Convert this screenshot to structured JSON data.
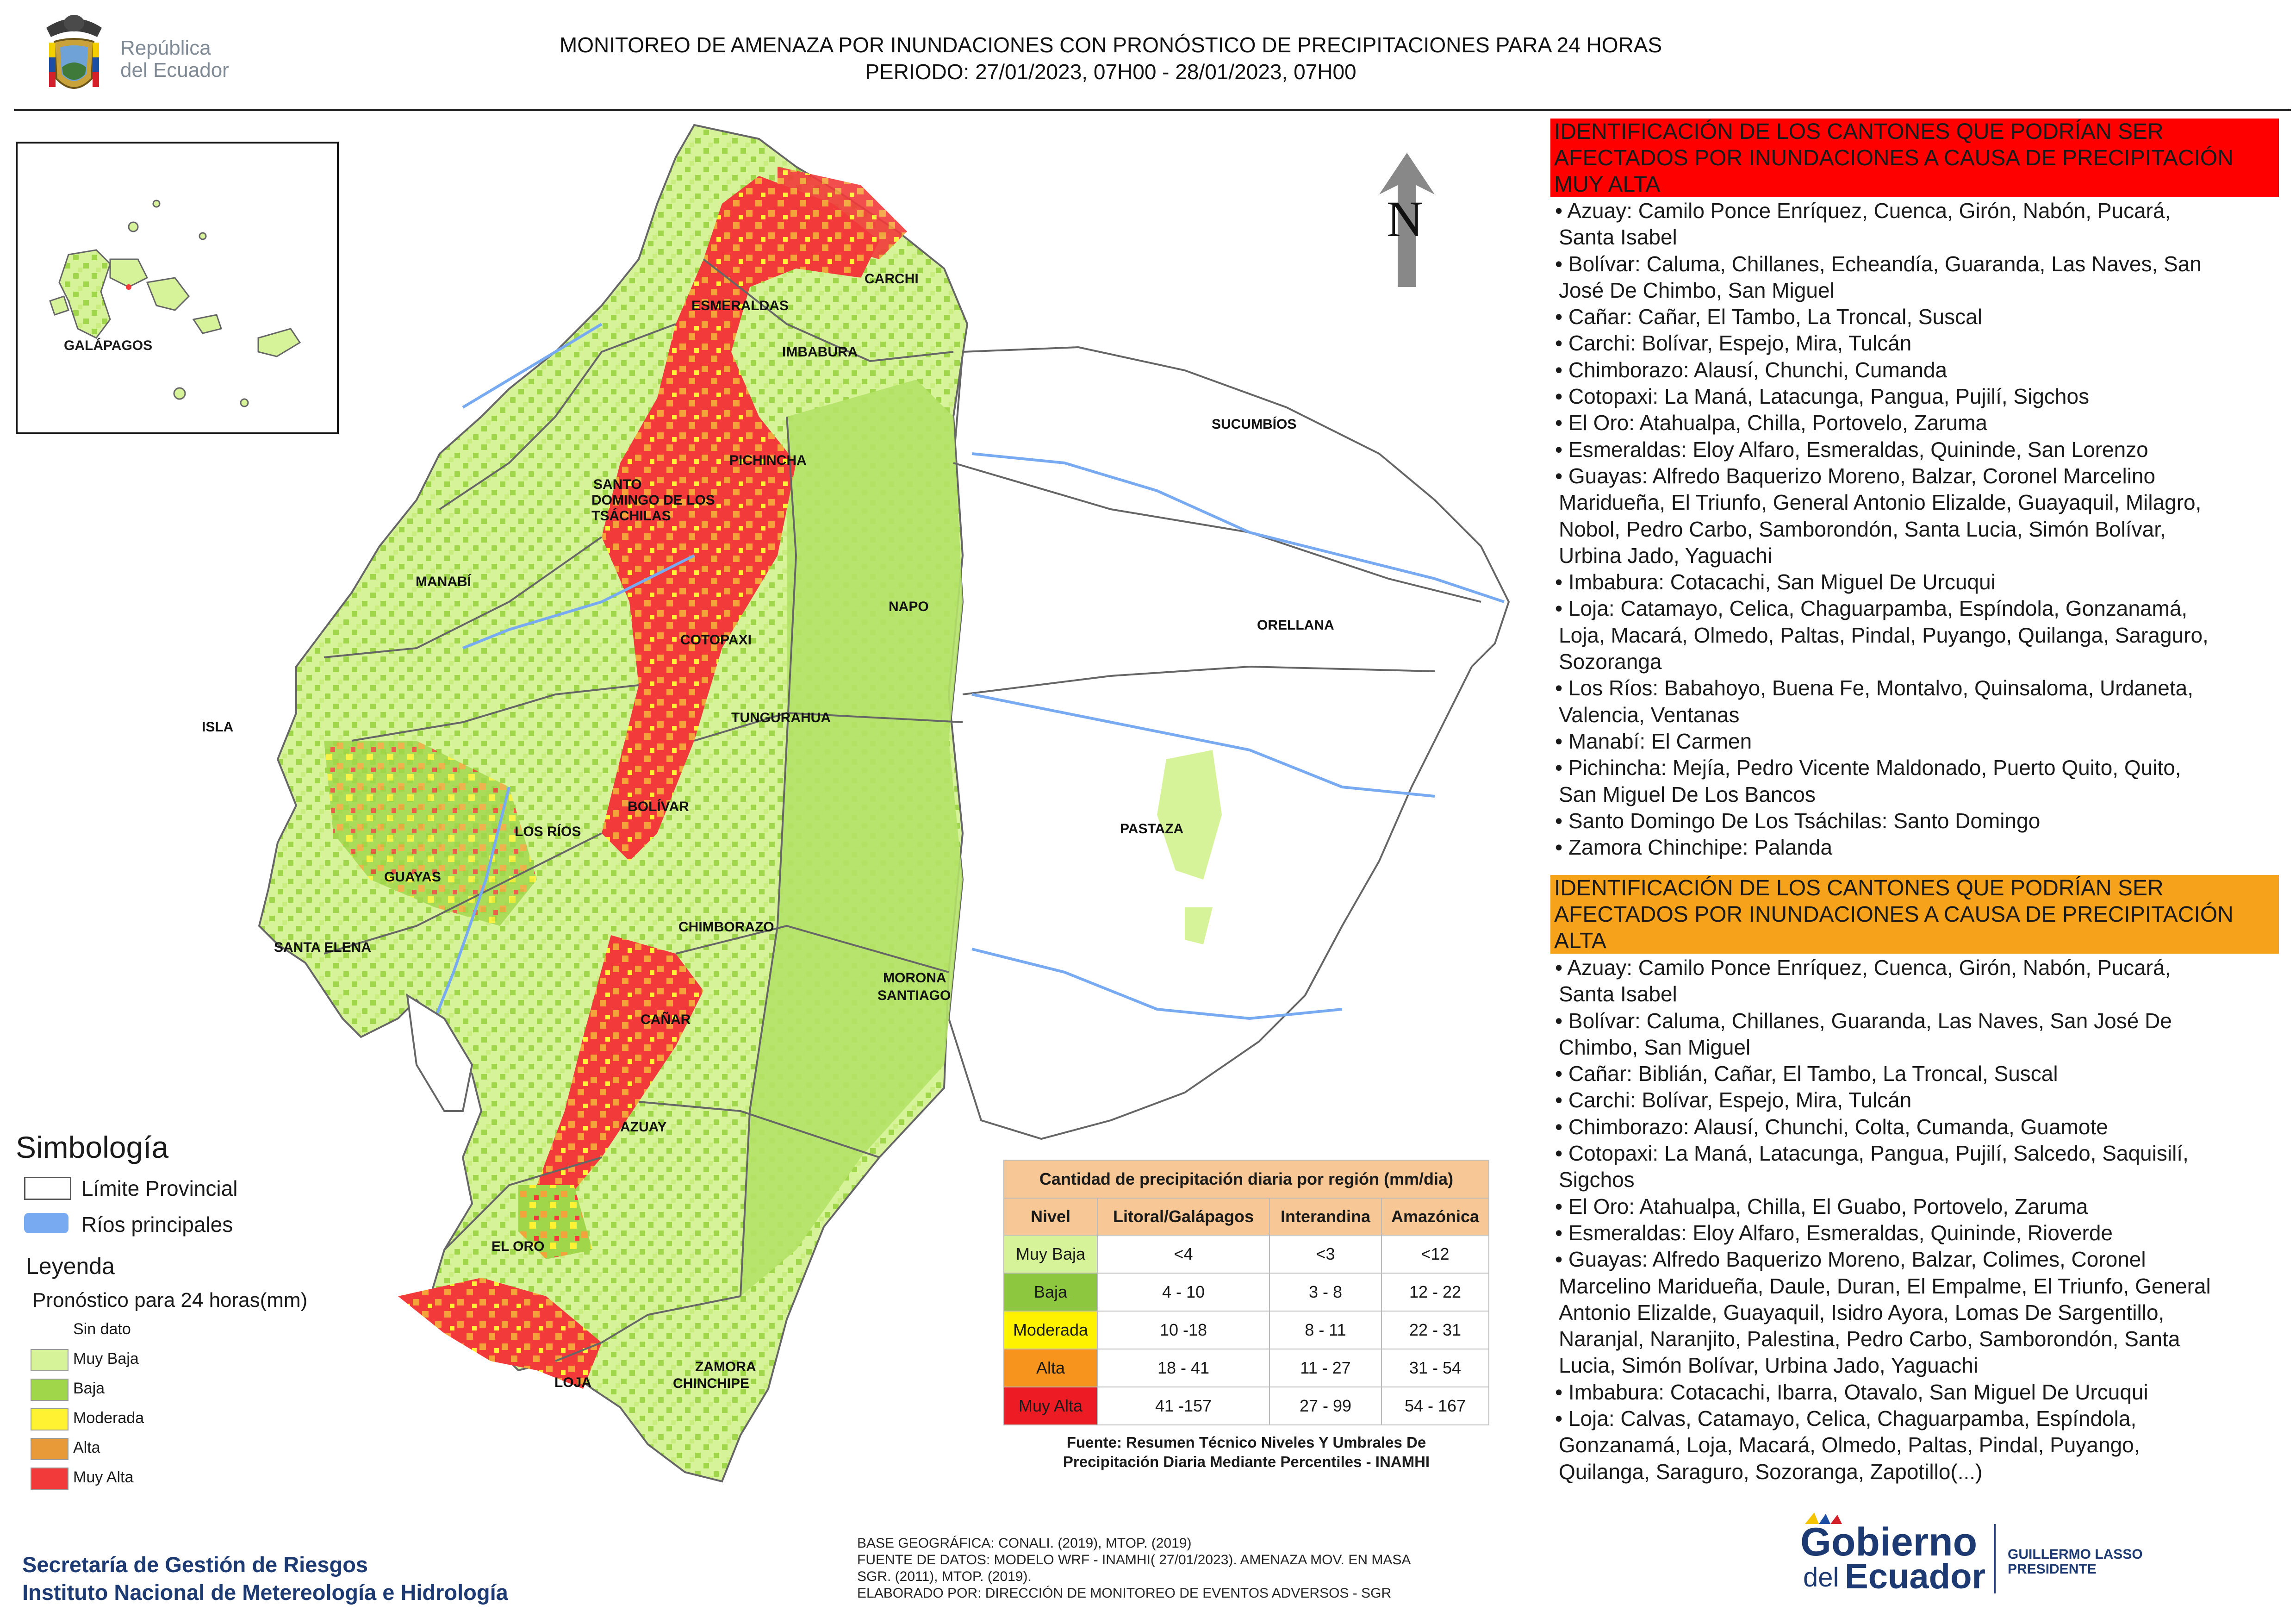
{
  "header": {
    "gov_text_1": "República",
    "gov_text_2": "del Ecuador",
    "title_line1": "MONITOREO DE AMENAZA POR INUNDACIONES  CON PRONÓSTICO DE  PRECIPITACIONES PARA 24 HORAS",
    "title_line2": "PERIODO: 27/01/2023, 07H00 - 28/01/2023, 07H00"
  },
  "map": {
    "north_label": "N",
    "inset_label": "GALÁPAGOS",
    "provinces": [
      "CARCHI",
      "ESMERALDAS",
      "IMBABURA",
      "SUCUMBÍOS",
      "PICHINCHA",
      "SANTO",
      "DOMINGO DE LOS",
      "TSÁCHILAS",
      "MANABÍ",
      "NAPO",
      "ORELLANA",
      "COTOPAXI",
      "ISLA",
      "TUNGURAHUA",
      "BOLÍVAR",
      "LOS RÍOS",
      "PASTAZA",
      "GUAYAS",
      "CHIMBORAZO",
      "SANTA ELENA",
      "MORONA",
      "SANTIAGO",
      "CAÑAR",
      "AZUAY",
      "EL ORO",
      "ZAMORA",
      "CHINCHIPE",
      "LOJA"
    ],
    "colors": {
      "muy_baja": "#d6f39a",
      "baja": "#9fd64a",
      "moderada": "#fff233",
      "alta": "#f4a33c",
      "muy_alta": "#f23a3a",
      "rivers": "#78aaf2",
      "boundary": "#666666"
    }
  },
  "legend": {
    "title": "Simbología",
    "limite": "Límite Provincial",
    "rios": "Ríos principales",
    "leyenda": "Leyenda",
    "pronostico": "Pronóstico para 24 horas(mm)",
    "classes": [
      {
        "label": "Sin dato",
        "color": "#ffffff"
      },
      {
        "label": " Muy Baja",
        "color": "#d6f39a"
      },
      {
        "label": "Baja",
        "color": "#9fd64a"
      },
      {
        "label": "Moderada",
        "color": "#fff233"
      },
      {
        "label": "Alta",
        "color": "#e89a38"
      },
      {
        "label": "Muy Alta",
        "color": "#f23a3a"
      }
    ]
  },
  "table": {
    "title": "Cantidad de precipitación diaria por región (mm/dia)",
    "headers": [
      "Nivel",
      "Litoral/Galápagos",
      "Interandina",
      "Amazónica"
    ],
    "rows": [
      {
        "nivel": "Muy Baja",
        "color": "#d6f39a",
        "litoral": "<4",
        "interandina": "<3",
        "amazonica": "<12"
      },
      {
        "nivel": "Baja",
        "color": "#8dc63f",
        "litoral": "4 - 10",
        "interandina": "3 - 8",
        "amazonica": "12 - 22"
      },
      {
        "nivel": "Moderada",
        "color": "#fff200",
        "litoral": "10 -18",
        "interandina": "8 - 11",
        "amazonica": "22 - 31"
      },
      {
        "nivel": "Alta",
        "color": "#f7941d",
        "litoral": "18 - 41",
        "interandina": "11 - 27",
        "amazonica": "31 - 54"
      },
      {
        "nivel": "Muy Alta",
        "color": "#ed1c24",
        "litoral": "41 -157",
        "interandina": "27 - 99",
        "amazonica": "54 - 167"
      }
    ],
    "source_1": "Fuente: Resumen Técnico Niveles Y Umbrales De",
    "source_2": "Precipitación Diaria Mediante Percentiles - INAMHI"
  },
  "panel_muy_alta": {
    "header_1": "IDENTIFICACIÓN DE LOS CANTONES QUE PODRÍAN SER",
    "header_2": "AFECTADOS POR INUNDACIONES  A CAUSA DE PRECIPITACIÓN",
    "header_3": "MUY ALTA",
    "lines": [
      "• Azuay: Camilo Ponce Enríquez, Cuenca, Girón, Nabón, Pucará,",
      "Santa Isabel",
      "• Bolívar: Caluma, Chillanes, Echeandía, Guaranda, Las Naves, San",
      "José De Chimbo, San Miguel",
      "• Cañar: Cañar, El Tambo, La Troncal, Suscal",
      "• Carchi: Bolívar, Espejo, Mira, Tulcán",
      "• Chimborazo: Alausí, Chunchi, Cumanda",
      "• Cotopaxi: La Maná, Latacunga, Pangua, Pujilí, Sigchos",
      "• El Oro: Atahualpa, Chilla, Portovelo, Zaruma",
      "• Esmeraldas: Eloy Alfaro, Esmeraldas, Quininde, San Lorenzo",
      "• Guayas: Alfredo Baquerizo Moreno, Balzar, Coronel Marcelino",
      "Maridueña, El Triunfo, General Antonio Elizalde, Guayaquil, Milagro,",
      "Nobol, Pedro Carbo, Samborondón, Santa Lucia, Simón Bolívar,",
      "Urbina Jado, Yaguachi",
      "• Imbabura: Cotacachi, San Miguel De Urcuqui",
      "• Loja: Catamayo, Celica, Chaguarpamba, Espíndola, Gonzanamá,",
      "Loja, Macará, Olmedo, Paltas, Pindal, Puyango, Quilanga, Saraguro,",
      "Sozoranga",
      "• Los Ríos: Babahoyo, Buena Fe, Montalvo, Quinsaloma, Urdaneta,",
      "Valencia, Ventanas",
      "• Manabí: El Carmen",
      "• Pichincha: Mejía, Pedro Vicente Maldonado, Puerto Quito, Quito,",
      "San Miguel De Los Bancos",
      "• Santo Domingo De Los Tsáchilas: Santo Domingo",
      "• Zamora Chinchipe: Palanda"
    ]
  },
  "panel_alta": {
    "header_1": "IDENTIFICACIÓN DE LOS CANTONES QUE  PODRÍAN SER",
    "header_2": "AFECTADOS POR INUNDACIONES  A CAUSA DE PRECIPITACIÓN",
    "header_3": "ALTA",
    "lines": [
      "• Azuay: Camilo Ponce Enríquez, Cuenca, Girón, Nabón, Pucará,",
      "Santa Isabel",
      "• Bolívar: Caluma, Chillanes, Guaranda, Las Naves, San José De",
      "Chimbo, San Miguel",
      "• Cañar: Biblián, Cañar, El Tambo, La Troncal, Suscal",
      "• Carchi: Bolívar, Espejo, Mira, Tulcán",
      "• Chimborazo: Alausí, Chunchi, Colta, Cumanda, Guamote",
      "• Cotopaxi: La Maná, Latacunga, Pangua, Pujilí, Salcedo, Saquisilí,",
      "Sigchos",
      "• El Oro: Atahualpa, Chilla, El Guabo, Portovelo, Zaruma",
      "• Esmeraldas: Eloy Alfaro, Esmeraldas, Quininde, Rioverde",
      "• Guayas: Alfredo Baquerizo Moreno, Balzar, Colimes, Coronel",
      "Marcelino Maridueña, Daule, Duran, El Empalme, El Triunfo, General",
      "Antonio Elizalde, Guayaquil, Isidro Ayora, Lomas De Sargentillo,",
      "Naranjal, Naranjito, Palestina, Pedro Carbo, Samborondón, Santa",
      "Lucia, Simón Bolívar, Urbina Jado, Yaguachi",
      "• Imbabura: Cotacachi, Ibarra, Otavalo, San Miguel De Urcuqui",
      "• Loja: Calvas, Catamayo, Celica, Chaguarpamba, Espíndola,",
      "Gonzanamá, Loja, Macará, Olmedo, Paltas, Pindal, Puyango,",
      "Quilanga, Saraguro, Sozoranga, Zapotillo(...)"
    ]
  },
  "footer": {
    "org_1": "Secretaría de Gestión de Riesgos",
    "org_2": "Instituto Nacional de Metereología e Hidrología",
    "base_1": "BASE GEOGRÁFICA: CONALI. (2019), MTOP. (2019)",
    "base_2": "FUENTE DE DATOS: MODELO WRF - INAMHI( 27/01/2023).  AMENAZA MOV. EN MASA",
    "base_3": "SGR. (2011), MTOP. (2019).",
    "base_4": "ELABORADO POR: DIRECCIÓN DE MONITOREO DE EVENTOS ADVERSOS - SGR",
    "gob_1": "Gobierno",
    "gob_2": "del",
    "gob_3": "Ecuador",
    "gl_1": "GUILLERMO LASSO",
    "gl_2": "PRESIDENTE"
  }
}
